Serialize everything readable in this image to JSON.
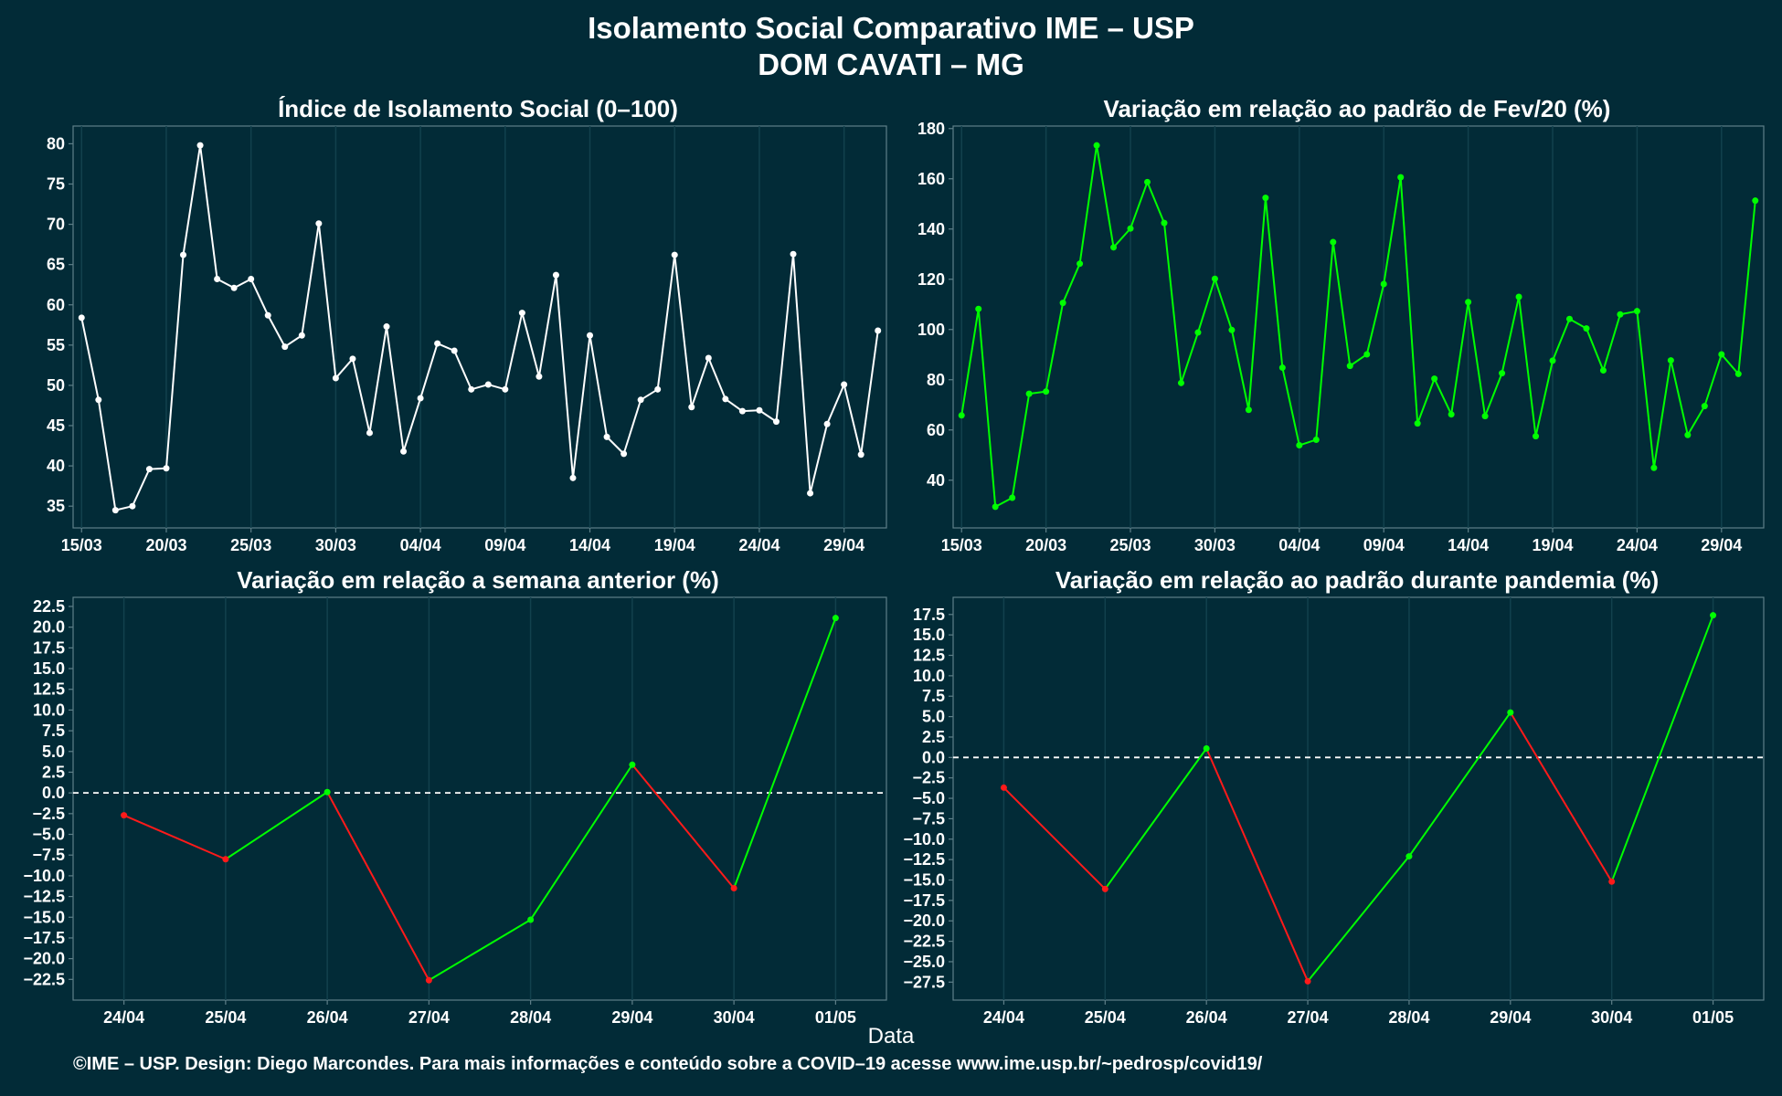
{
  "title": "Isolamento Social Comparativo IME – USP",
  "subtitle": "DOM CAVATI – MG",
  "x_axis_title": "Data",
  "credit": "©IME – USP. Design: Diego Marcondes. Para mais informações e conteúdo sobre a COVID–19 acesse www.ime.usp.br/~pedrosp/covid19/",
  "colors": {
    "background": "#022b37",
    "white_line": "#ffffff",
    "green": "#00ff00",
    "red": "#ff1a1a",
    "grid": "#12414d",
    "frame": "#5e7f88"
  },
  "chart_data": [
    {
      "id": "p1",
      "type": "line",
      "title": "Índice de Isolamento Social (0–100)",
      "color": "white",
      "xlim": [
        -0.5,
        47.5
      ],
      "ylim": [
        32.3,
        82.2
      ],
      "y_ticks": [
        35,
        40,
        45,
        50,
        55,
        60,
        65,
        70,
        75,
        80
      ],
      "x_ticks": [
        {
          "i": 0,
          "label": "15/03"
        },
        {
          "i": 5,
          "label": "20/03"
        },
        {
          "i": 10,
          "label": "25/03"
        },
        {
          "i": 15,
          "label": "30/03"
        },
        {
          "i": 20,
          "label": "04/04"
        },
        {
          "i": 25,
          "label": "09/04"
        },
        {
          "i": 30,
          "label": "14/04"
        },
        {
          "i": 35,
          "label": "19/04"
        },
        {
          "i": 40,
          "label": "24/04"
        },
        {
          "i": 45,
          "label": "29/04"
        }
      ],
      "start_date": "15/03",
      "values": [
        58.4,
        48.2,
        34.5,
        35.0,
        39.6,
        39.7,
        66.2,
        79.8,
        63.2,
        62.1,
        63.2,
        58.7,
        54.8,
        56.2,
        70.1,
        50.9,
        53.3,
        44.1,
        57.3,
        41.8,
        48.4,
        55.2,
        54.3,
        49.5,
        50.1,
        49.5,
        59.0,
        51.1,
        63.7,
        38.5,
        56.2,
        43.6,
        41.5,
        48.2,
        49.5,
        66.2,
        47.3,
        53.4,
        48.3,
        46.8,
        46.9,
        45.5,
        66.3,
        36.6,
        45.2,
        50.1,
        41.4,
        56.8
      ]
    },
    {
      "id": "p2",
      "type": "line",
      "title": "Variação em relação ao padrão de Fev/20 (%)",
      "color": "green",
      "xlim": [
        -0.5,
        47.5
      ],
      "ylim": [
        21.0,
        181.0
      ],
      "y_ticks": [
        40,
        60,
        80,
        100,
        120,
        140,
        160,
        180
      ],
      "x_ticks": [
        {
          "i": 0,
          "label": "15/03"
        },
        {
          "i": 5,
          "label": "20/03"
        },
        {
          "i": 10,
          "label": "25/03"
        },
        {
          "i": 15,
          "label": "30/03"
        },
        {
          "i": 20,
          "label": "04/04"
        },
        {
          "i": 25,
          "label": "09/04"
        },
        {
          "i": 30,
          "label": "14/04"
        },
        {
          "i": 35,
          "label": "19/04"
        },
        {
          "i": 40,
          "label": "24/04"
        },
        {
          "i": 45,
          "label": "29/04"
        }
      ],
      "start_date": "15/03",
      "values": [
        65.8,
        108.2,
        29.4,
        33.0,
        74.4,
        75.3,
        110.6,
        126.2,
        173.3,
        132.7,
        140.2,
        158.7,
        142.4,
        78.7,
        98.8,
        120.2,
        99.8,
        68.0,
        152.4,
        84.8,
        53.9,
        56.1,
        134.8,
        85.5,
        90.1,
        118.1,
        160.6,
        62.6,
        80.4,
        66.2,
        110.9,
        65.5,
        82.6,
        113.0,
        57.5,
        87.6,
        104.2,
        100.4,
        83.7,
        106.0,
        107.3,
        44.9,
        87.7,
        58.0,
        69.5,
        90.1,
        82.3,
        151.3
      ]
    },
    {
      "id": "p3",
      "type": "line",
      "title": "Variação em relação a semana anterior (%)",
      "color": "red-green by direction",
      "xlim": [
        -0.5,
        7.5
      ],
      "ylim": [
        -25.0,
        23.6
      ],
      "reference_line": 0,
      "y_ticks": [
        -22.5,
        -20.0,
        -17.5,
        -15.0,
        -12.5,
        -10.0,
        -7.5,
        -5.0,
        -2.5,
        0.0,
        2.5,
        5.0,
        7.5,
        10.0,
        12.5,
        15.0,
        17.5,
        20.0,
        22.5
      ],
      "categories": [
        "24/04",
        "25/04",
        "26/04",
        "27/04",
        "28/04",
        "29/04",
        "30/04",
        "01/05"
      ],
      "values": [
        -2.7,
        -8.0,
        0.1,
        -22.6,
        -15.3,
        3.4,
        -11.5,
        21.1
      ]
    },
    {
      "id": "p4",
      "type": "line",
      "title": "Variação em relação ao padrão durante pandemia (%)",
      "color": "red-green by direction",
      "xlim": [
        -0.5,
        7.5
      ],
      "ylim": [
        -29.7,
        19.6
      ],
      "reference_line": 0,
      "y_ticks": [
        -27.5,
        -25.0,
        -22.5,
        -20.0,
        -17.5,
        -15.0,
        -12.5,
        -10.0,
        -7.5,
        -5.0,
        -2.5,
        0.0,
        2.5,
        5.0,
        7.5,
        10.0,
        12.5,
        15.0,
        17.5
      ],
      "categories": [
        "24/04",
        "25/04",
        "26/04",
        "27/04",
        "28/04",
        "29/04",
        "30/04",
        "01/05"
      ],
      "values": [
        -3.7,
        -16.1,
        1.1,
        -27.4,
        -12.1,
        5.5,
        -15.2,
        17.4
      ]
    }
  ]
}
